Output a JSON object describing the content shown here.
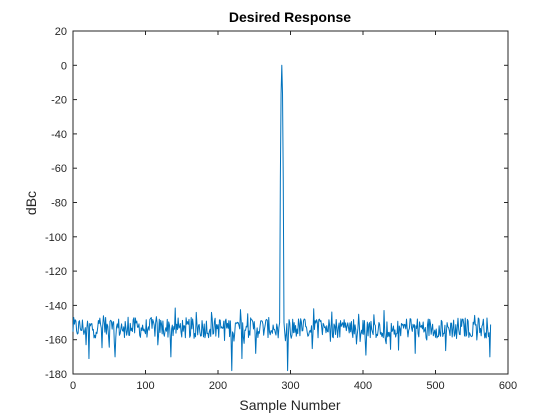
{
  "chart_data": {
    "type": "line",
    "title": "Desired Response",
    "xlabel": "Sample Number",
    "ylabel": "dBc",
    "xlim": [
      0,
      600
    ],
    "ylim": [
      -180,
      20
    ],
    "x_ticks": [
      0,
      100,
      200,
      300,
      400,
      500,
      600
    ],
    "y_ticks": [
      20,
      0,
      -20,
      -40,
      -60,
      -80,
      -100,
      -120,
      -140,
      -160,
      -180
    ],
    "grid": false,
    "line_color": "#0072BD",
    "noise_floor": {
      "x_start": 0,
      "x_end": 576,
      "mean": -153,
      "spread": 6,
      "min_dips": [
        {
          "x": 22,
          "y": -171
        },
        {
          "x": 58,
          "y": -170
        },
        {
          "x": 135,
          "y": -170
        },
        {
          "x": 219,
          "y": -178
        },
        {
          "x": 233,
          "y": -171
        },
        {
          "x": 252,
          "y": -168
        },
        {
          "x": 296,
          "y": -178
        },
        {
          "x": 404,
          "y": -169
        },
        {
          "x": 472,
          "y": -168
        },
        {
          "x": 575,
          "y": -170
        }
      ]
    },
    "peak": {
      "x": 288,
      "y": 0,
      "x_left": 285,
      "x_right": 291
    }
  }
}
